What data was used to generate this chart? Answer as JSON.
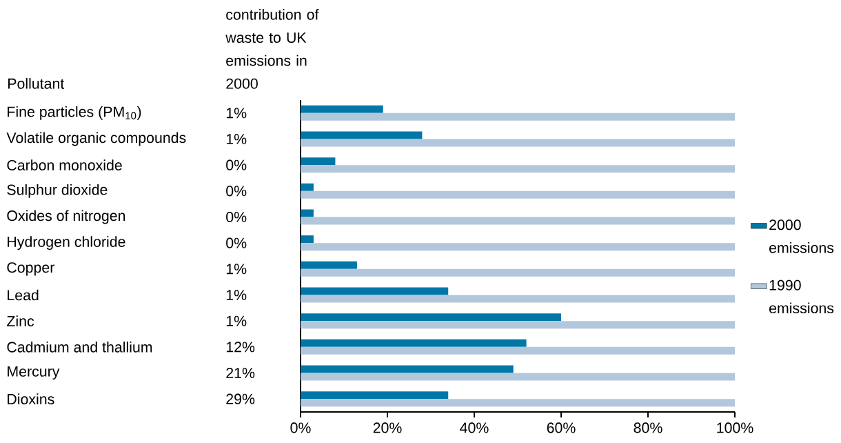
{
  "chart_data": {
    "type": "bar",
    "orientation": "horizontal",
    "ylabel": "Pollutant",
    "categories": [
      "Fine particles (PM$_{10}$)",
      "Volatile organic compounds",
      "Carbon monoxide",
      "Sulphur dioxide",
      "Oxides of nitrogen",
      "Hydrogen chloride",
      "Copper",
      "Lead",
      "Zinc",
      "Cadmium and thallium",
      "Mercury",
      "Dioxins"
    ],
    "series": [
      {
        "name": "2000 emissions",
        "color": "#0077a6",
        "values": [
          19,
          28,
          8,
          3,
          3,
          3,
          13,
          34,
          60,
          52,
          49,
          34
        ]
      },
      {
        "name": "1990 emissions",
        "color": "#b3c7dc",
        "values": [
          100,
          100,
          100,
          100,
          100,
          100,
          100,
          100,
          100,
          100,
          100,
          100
        ]
      }
    ],
    "xlim": [
      0,
      100
    ],
    "xticks": [
      {
        "value": 0,
        "label": "0%"
      },
      {
        "value": 20,
        "label": "20%"
      },
      {
        "value": 40,
        "label": "40%"
      },
      {
        "value": 60,
        "label": "60%"
      },
      {
        "value": 80,
        "label": "80%"
      },
      {
        "value": 100,
        "label": "100%"
      }
    ],
    "legend": "right",
    "annotations": [
      "contribution of waste to UK emissions in 2000",
      "1%",
      "1%",
      "0%",
      "0%",
      "0%",
      "0%",
      "1%",
      "1%",
      "1%",
      "12%",
      "21%",
      "29%"
    ]
  }
}
